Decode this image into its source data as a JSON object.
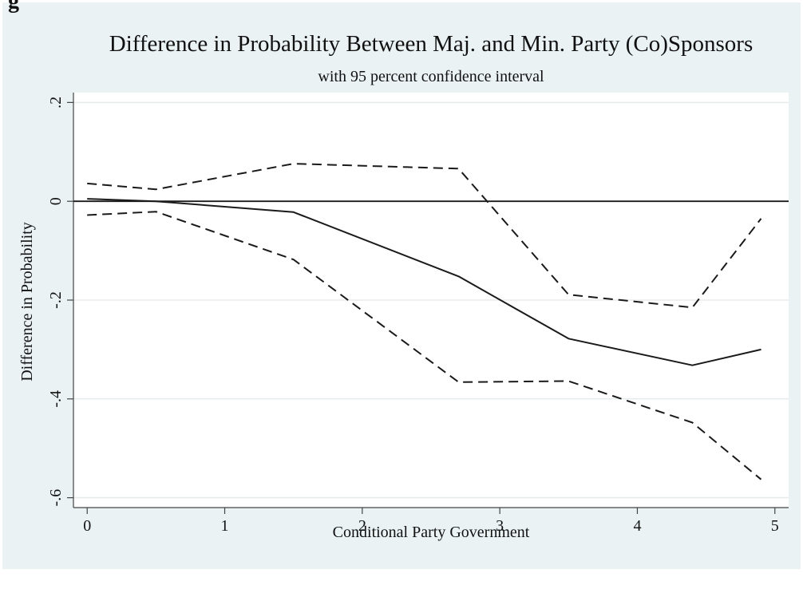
{
  "fig_label": "g",
  "chart_data": {
    "type": "line",
    "title": "Difference in Probability Between Maj. and Min. Party (Co)Sponsors",
    "subtitle": "with 95 percent confidence interval",
    "xlabel": "Conditional Party Government",
    "ylabel": "Difference in Probability",
    "xlim": [
      -0.1,
      5.1
    ],
    "ylim": [
      -0.62,
      0.22
    ],
    "xticks": [
      0,
      1,
      2,
      3,
      4,
      5
    ],
    "xtick_labels": [
      "0",
      "1",
      "2",
      "3",
      "4",
      "5"
    ],
    "yticks": [
      0.2,
      0,
      -0.2,
      -0.4,
      -0.6
    ],
    "ytick_labels": [
      ".2",
      "0",
      "-.2",
      "-.4",
      "-.6"
    ],
    "grid": "horizontal",
    "reference_line_y": 0,
    "colors": {
      "background": "#eaf2f3",
      "plot_area": "#ffffff",
      "line": "#1a1a1a",
      "grid": "#e6eced"
    },
    "series": [
      {
        "role": "estimate",
        "style": "solid",
        "x": [
          0,
          0.5,
          1.5,
          2.7,
          3.5,
          4.4,
          4.9
        ],
        "y": [
          0.005,
          0.0,
          -0.022,
          -0.152,
          -0.278,
          -0.332,
          -0.3
        ]
      },
      {
        "role": "upper",
        "style": "dashed",
        "x": [
          0,
          0.5,
          1.5,
          2.7,
          3.5,
          4.4,
          4.9
        ],
        "y": [
          0.036,
          0.024,
          0.076,
          0.066,
          -0.189,
          -0.215,
          -0.035
        ]
      },
      {
        "role": "lower",
        "style": "dashed",
        "x": [
          0,
          0.5,
          1.5,
          2.7,
          3.5,
          4.4,
          4.9
        ],
        "y": [
          -0.028,
          -0.021,
          -0.118,
          -0.366,
          -0.364,
          -0.448,
          -0.563
        ]
      }
    ]
  }
}
